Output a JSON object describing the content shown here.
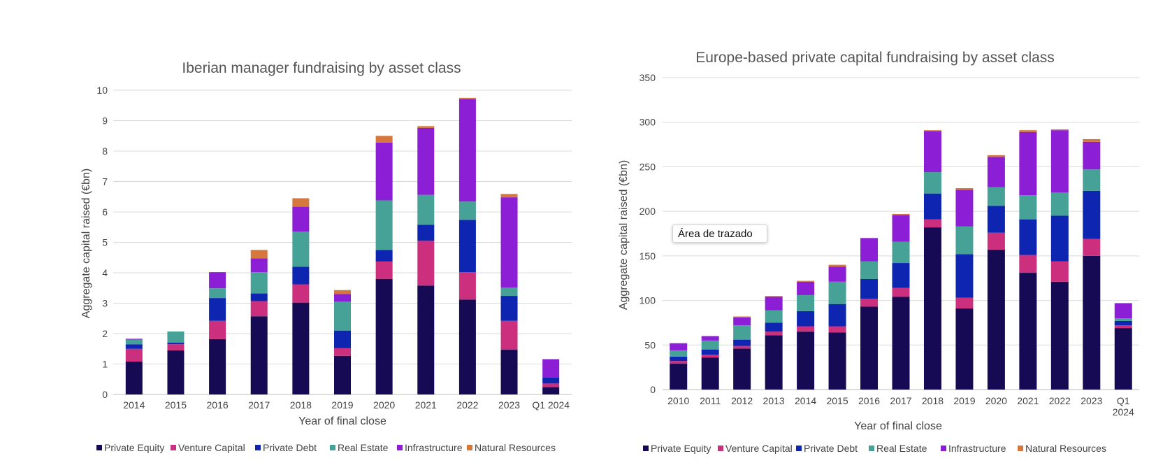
{
  "colors": {
    "Private Equity": "#170a54",
    "Venture Capital": "#cc2f7e",
    "Private Debt": "#0e25b2",
    "Real Estate": "#46a197",
    "Infrastructure": "#8c1fd5",
    "Natural Resources": "#d6773e"
  },
  "tooltip": "Área de trazado",
  "chart_data": [
    {
      "type": "bar",
      "stacked": true,
      "title": "Iberian manager fundraising by asset class",
      "xlabel": "Year of final close",
      "ylabel": "Aggregate capital raised (€bn)",
      "ylim": [
        0,
        10
      ],
      "yticks": [
        "0",
        "1",
        "2",
        "3",
        "4",
        "5",
        "6",
        "7",
        "8",
        "9",
        "10"
      ],
      "grid": true,
      "legend": "bottom",
      "categories": [
        "2014",
        "2015",
        "2016",
        "2017",
        "2018",
        "2019",
        "2020",
        "2021",
        "2022",
        "2023",
        "Q1 2024"
      ],
      "series": [
        {
          "name": "Private Equity",
          "values": [
            1.08,
            1.45,
            1.82,
            2.57,
            3.02,
            1.27,
            3.8,
            3.58,
            3.12,
            1.47,
            0.24
          ]
        },
        {
          "name": "Venture Capital",
          "values": [
            0.42,
            0.2,
            0.6,
            0.5,
            0.6,
            0.25,
            0.57,
            1.47,
            0.9,
            0.95,
            0.12
          ]
        },
        {
          "name": "Private Debt",
          "values": [
            0.15,
            0.05,
            0.75,
            0.25,
            0.58,
            0.58,
            0.38,
            0.53,
            1.72,
            0.82,
            0.2
          ]
        },
        {
          "name": "Real Estate",
          "values": [
            0.15,
            0.37,
            0.32,
            0.7,
            1.15,
            0.95,
            1.63,
            0.98,
            0.6,
            0.27,
            0.0
          ]
        },
        {
          "name": "Infrastructure",
          "values": [
            0.03,
            0.0,
            0.53,
            0.45,
            0.82,
            0.25,
            1.9,
            2.2,
            3.37,
            2.97,
            0.6
          ]
        },
        {
          "name": "Natural Resources",
          "values": [
            0.0,
            0.0,
            0.0,
            0.28,
            0.28,
            0.13,
            0.22,
            0.06,
            0.04,
            0.11,
            0.0
          ]
        }
      ]
    },
    {
      "type": "bar",
      "stacked": true,
      "title": "Europe-based private capital fundraising by asset class",
      "xlabel": "Year of final close",
      "ylabel": "Aggregate capital raised (€bn)",
      "ylim": [
        0,
        350
      ],
      "yticks": [
        "0",
        "50",
        "100",
        "150",
        "200",
        "250",
        "300",
        "350"
      ],
      "grid": true,
      "legend": "bottom",
      "categories": [
        "2010",
        "2011",
        "2012",
        "2013",
        "2014",
        "2015",
        "2016",
        "2017",
        "2018",
        "2019",
        "2020",
        "2021",
        "2022",
        "2023",
        "Q1 2024"
      ],
      "series": [
        {
          "name": "Private Equity",
          "values": [
            29,
            36,
            46,
            61,
            65,
            64,
            93,
            104,
            182,
            91,
            157,
            131,
            121,
            150,
            69
          ]
        },
        {
          "name": "Venture Capital",
          "values": [
            3,
            3,
            3,
            4,
            6,
            7,
            9,
            10,
            9,
            12,
            19,
            20,
            23,
            19,
            3
          ]
        },
        {
          "name": "Private Debt",
          "values": [
            5,
            6,
            7,
            10,
            17,
            25,
            22,
            28,
            29,
            49,
            30,
            40,
            51,
            54,
            5
          ]
        },
        {
          "name": "Real Estate",
          "values": [
            7,
            10,
            16,
            14,
            18,
            25,
            20,
            24,
            24,
            31,
            21,
            27,
            26,
            24,
            3
          ]
        },
        {
          "name": "Infrastructure",
          "values": [
            8,
            5,
            9,
            15,
            15,
            17,
            26,
            30,
            46,
            41,
            34,
            71,
            70,
            31,
            17
          ]
        },
        {
          "name": "Natural Resources",
          "values": [
            0,
            0,
            1,
            1,
            1,
            2,
            0,
            1,
            1,
            2,
            2,
            2,
            1,
            3,
            0
          ]
        }
      ]
    }
  ]
}
